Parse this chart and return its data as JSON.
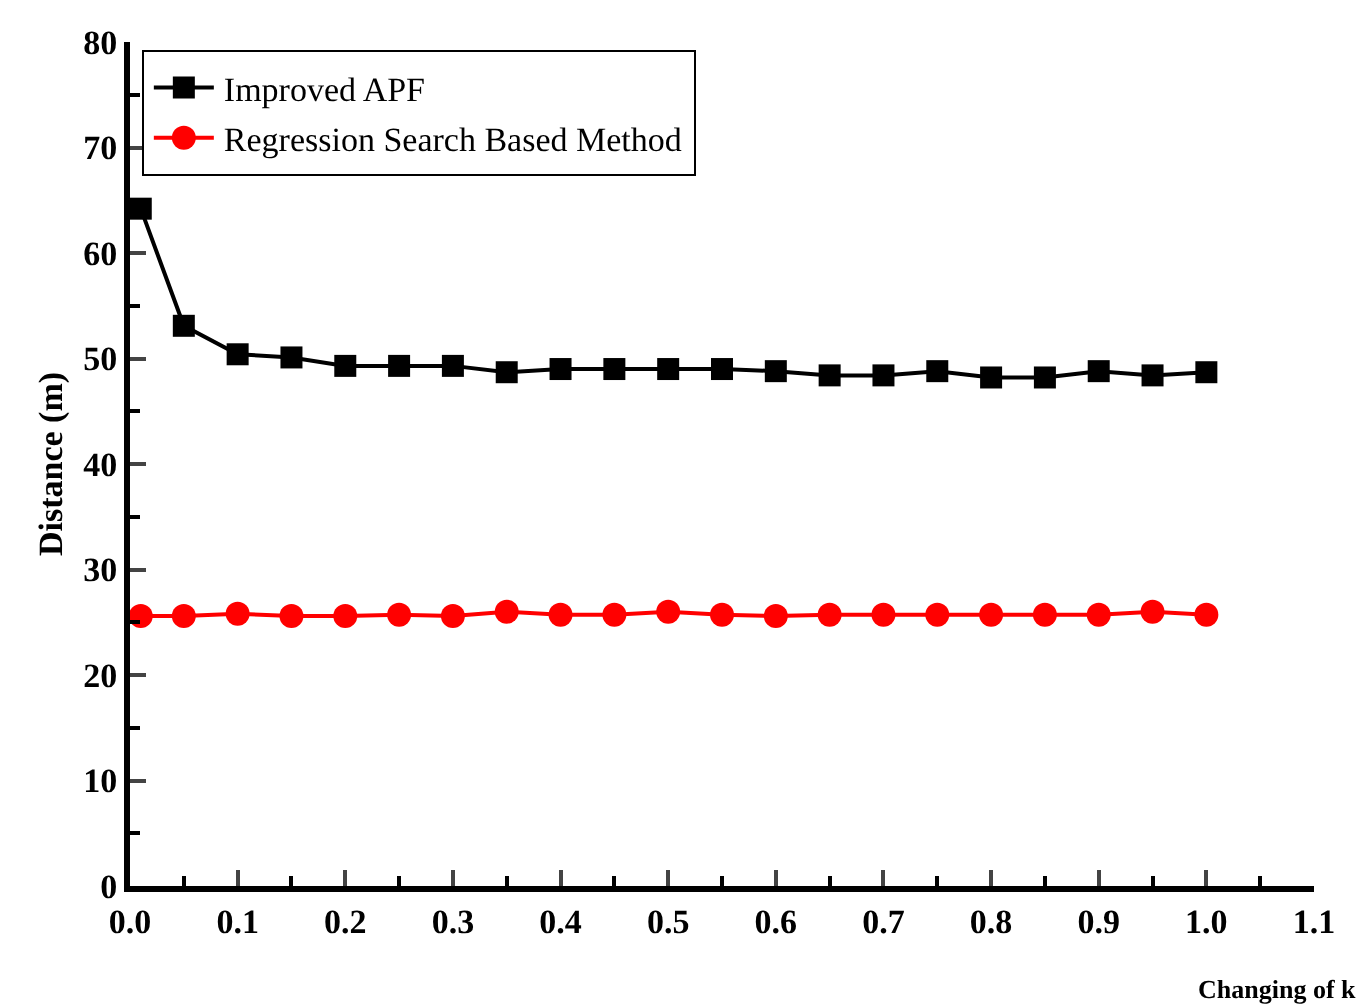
{
  "chart_data": {
    "type": "line",
    "xlabel": "Changing of k",
    "ylabel": "Distance (m)",
    "x": [
      0.01,
      0.05,
      0.1,
      0.15,
      0.2,
      0.25,
      0.3,
      0.35,
      0.4,
      0.45,
      0.5,
      0.55,
      0.6,
      0.65,
      0.7,
      0.75,
      0.8,
      0.85,
      0.9,
      0.95,
      1.0
    ],
    "series": [
      {
        "name": "Improved APF",
        "color": "#000000",
        "marker": "square",
        "values": [
          64.2,
          53.1,
          50.4,
          50.1,
          49.3,
          49.3,
          49.3,
          48.7,
          49.0,
          49.0,
          49.0,
          49.0,
          48.8,
          48.4,
          48.4,
          48.8,
          48.2,
          48.2,
          48.8,
          48.4,
          48.7
        ]
      },
      {
        "name": "Regression Search Based Method",
        "color": "#ff0000",
        "marker": "circle",
        "values": [
          25.6,
          25.6,
          25.8,
          25.6,
          25.6,
          25.7,
          25.6,
          26.0,
          25.7,
          25.7,
          26.0,
          25.7,
          25.6,
          25.7,
          25.7,
          25.7,
          25.7,
          25.7,
          25.7,
          26.0,
          25.7
        ]
      }
    ],
    "xlim": [
      0,
      1.1
    ],
    "xticks": [
      {
        "value": 0,
        "label": "0.0"
      },
      0.1,
      0.2,
      0.3,
      0.4,
      0.5,
      0.6,
      0.7,
      0.8,
      0.9,
      {
        "value": 1,
        "label": "1.0"
      },
      1.1
    ],
    "ylim": [
      0,
      80
    ],
    "yticks": [
      0,
      10,
      20,
      30,
      40,
      50,
      60,
      70,
      80
    ],
    "legend": "top left",
    "line_style": "solid"
  }
}
